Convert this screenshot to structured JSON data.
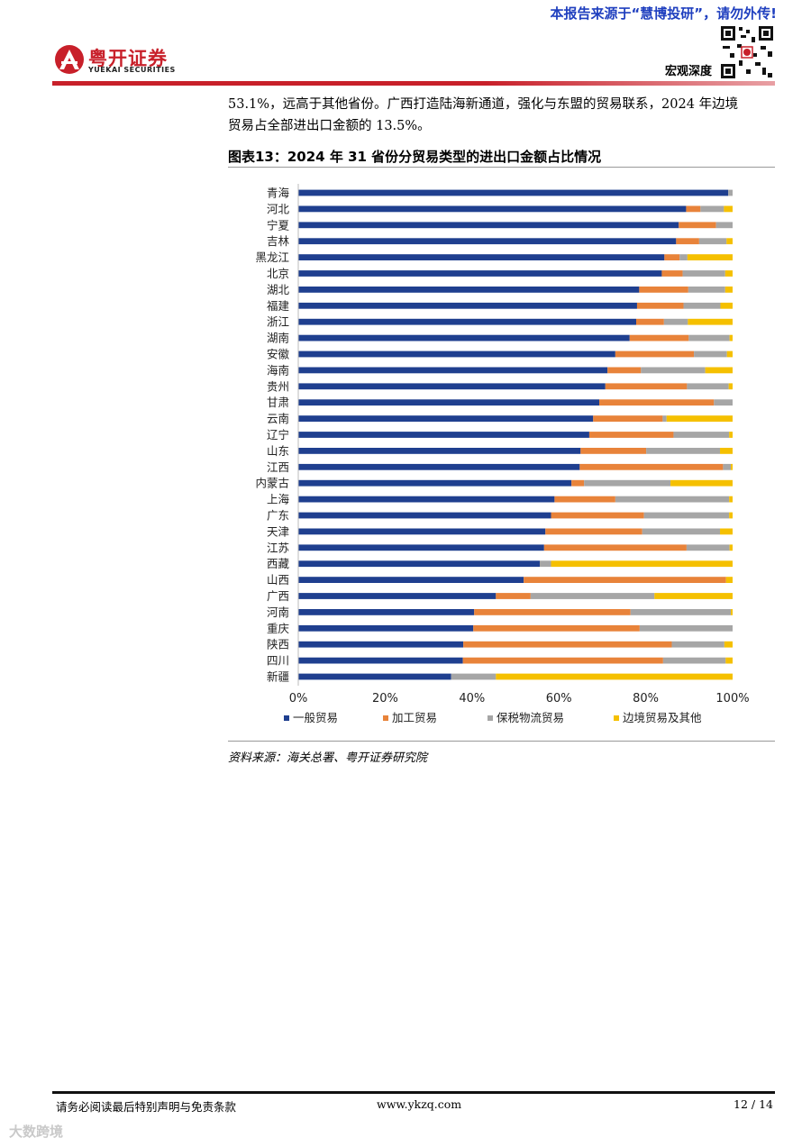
{
  "header": {
    "notice": "本报告来源于“慧博投研”，请勿外传!",
    "logo_cn": "粤开证券",
    "logo_en": "YUEKAI SECURITIES",
    "section": "宏观深度"
  },
  "paragraph": {
    "line1": "53.1%，远高于其他省份。广西打造陆海新通道，强化与东盟的贸易联系，2024 年边境",
    "line2": "贸易占全部进出口金额的 13.5%。"
  },
  "figure": {
    "title": "图表13：2024 年 31 省份分贸易类型的进出口金额占比情况",
    "source": "资料来源：海关总署、粤开证券研究院"
  },
  "chart_data": {
    "type": "bar",
    "orientation": "horizontal",
    "stacked": true,
    "categories": [
      "青海",
      "河北",
      "宁夏",
      "吉林",
      "黑龙江",
      "北京",
      "湖北",
      "福建",
      "浙江",
      "湖南",
      "安徽",
      "海南",
      "贵州",
      "甘肃",
      "云南",
      "辽宁",
      "山东",
      "江西",
      "内蒙古",
      "上海",
      "广东",
      "天津",
      "江苏",
      "西藏",
      "山西",
      "广西",
      "河南",
      "重庆",
      "陕西",
      "四川",
      "新疆"
    ],
    "series": [
      {
        "name": "一般贸易",
        "color": "#1f3f8f",
        "values": [
          99.0,
          89.3,
          87.6,
          87.0,
          84.3,
          83.7,
          78.5,
          78.0,
          77.8,
          76.3,
          73.0,
          71.2,
          70.7,
          69.3,
          67.9,
          67.0,
          65.0,
          64.8,
          62.9,
          59.0,
          58.2,
          56.9,
          56.6,
          55.6,
          51.9,
          45.5,
          40.5,
          40.3,
          38.0,
          37.9,
          35.2
        ]
      },
      {
        "name": "加工贸易",
        "color": "#e8833a",
        "values": [
          0.0,
          3.3,
          8.6,
          5.3,
          3.5,
          4.8,
          11.3,
          10.7,
          6.4,
          13.6,
          18.1,
          7.7,
          18.8,
          26.4,
          16.0,
          19.4,
          15.1,
          33.0,
          2.9,
          14.0,
          21.4,
          22.3,
          32.8,
          0.0,
          46.6,
          8.0,
          36.0,
          38.3,
          48.0,
          46.1,
          0.0
        ]
      },
      {
        "name": "保税物流贸易",
        "color": "#a6a6a6",
        "values": [
          1.0,
          5.4,
          3.8,
          6.3,
          1.8,
          9.8,
          8.5,
          8.5,
          5.5,
          9.4,
          7.6,
          14.8,
          9.6,
          4.3,
          0.9,
          12.8,
          17.0,
          1.8,
          19.9,
          26.2,
          19.6,
          17.9,
          9.9,
          2.6,
          0.0,
          28.5,
          23.1,
          21.4,
          12.1,
          14.4,
          10.3
        ]
      },
      {
        "name": "边境贸易及其他",
        "color": "#f5c000",
        "values": [
          0.0,
          2.0,
          0.0,
          1.4,
          10.4,
          1.7,
          1.7,
          2.8,
          10.3,
          0.7,
          1.3,
          6.3,
          0.9,
          0.0,
          15.2,
          0.8,
          2.9,
          0.4,
          14.3,
          0.8,
          0.8,
          2.9,
          0.7,
          41.8,
          1.5,
          18.0,
          0.4,
          0.0,
          1.9,
          1.6,
          54.5
        ]
      }
    ],
    "x_ticks": [
      "0%",
      "20%",
      "40%",
      "60%",
      "80%",
      "100%"
    ],
    "xlim": [
      0,
      100
    ],
    "legend_position": "bottom",
    "grid": false
  },
  "footer": {
    "disclaimer": "请务必阅读最后特别声明与免责条款",
    "website": "www.ykzq.com",
    "page": "12 / 14"
  },
  "watermark": "大数跨境"
}
